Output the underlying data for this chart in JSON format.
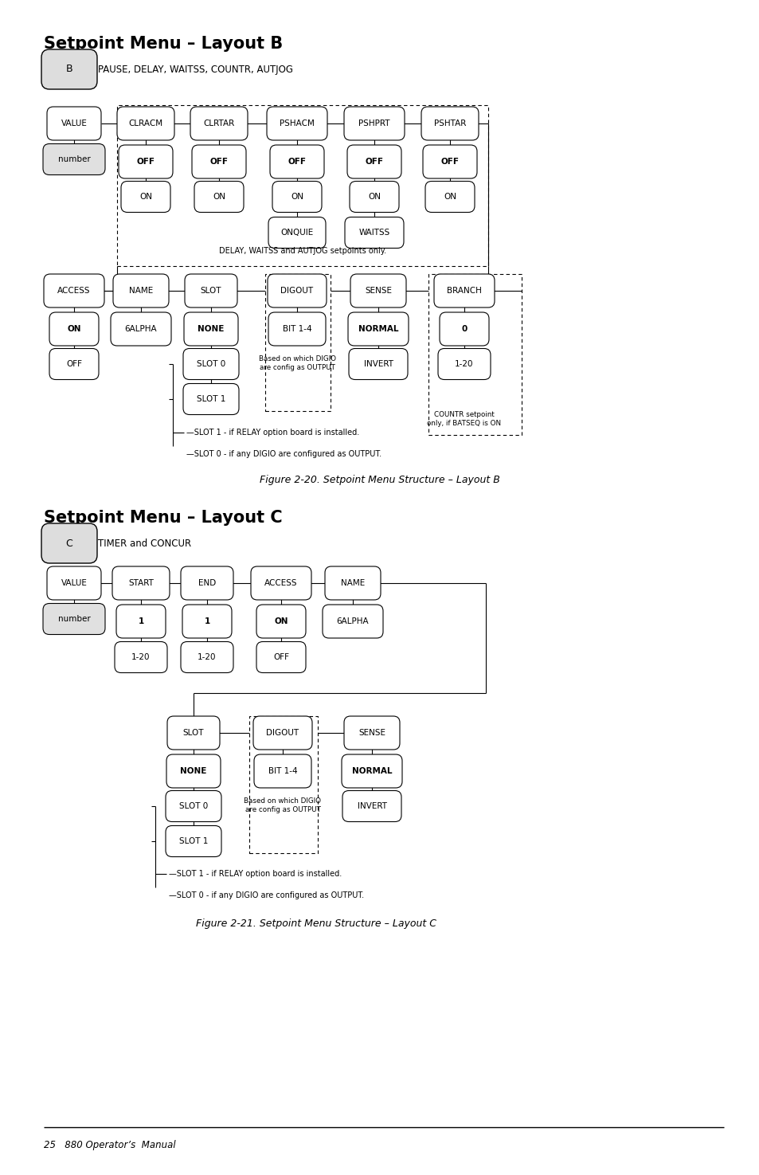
{
  "bg_color": "#ffffff",
  "title_b": "Setpoint Menu – Layout B",
  "title_c": "Setpoint Menu – Layout C",
  "fig_caption_b": "Figure 2-20. Setpoint Menu Structure – Layout B",
  "fig_caption_c": "Figure 2-21. Setpoint Menu Structure – Layout C",
  "footer": "25   880 Operator’s  Manual",
  "label_b": "B",
  "label_c": "C",
  "desc_b": "PAUSE, DELAY, WAITSS, COUNTR, AUTJOG",
  "desc_c": "TIMER and CONCUR"
}
